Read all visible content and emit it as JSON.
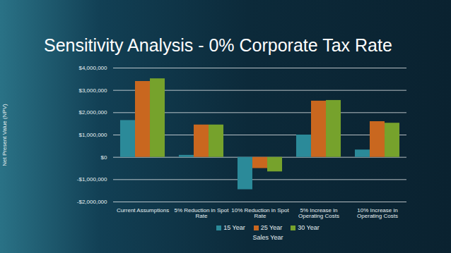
{
  "chart_data": {
    "type": "bar",
    "title": "Sensitivity Analysis - 0% Corporate Tax Rate",
    "x_label": "Sales Year",
    "y_label": "Net Present Value (NPV)",
    "categories": [
      "Current Assumptions",
      "5% Reduction in Spot Rate",
      "10% Reduction in Spot Rate",
      "5% Increase in Operating Costs",
      "10% Increase in Operating Costs"
    ],
    "series": [
      {
        "name": "15 Year",
        "color": "#2b8a99",
        "values": [
          1650000,
          90000,
          -1450000,
          1000000,
          330000
        ]
      },
      {
        "name": "25 Year",
        "color": "#c9671f",
        "values": [
          3400000,
          1450000,
          -500000,
          2520000,
          1600000
        ]
      },
      {
        "name": "30 Year",
        "color": "#76a22c",
        "values": [
          3520000,
          1450000,
          -650000,
          2550000,
          1530000
        ]
      }
    ],
    "ylim": [
      -2000000,
      4000000
    ],
    "yticks": [
      {
        "value": -2000000,
        "label": "-$2,000,000"
      },
      {
        "value": -1000000,
        "label": "-$1,000,000"
      },
      {
        "value": 0,
        "label": "$0"
      },
      {
        "value": 1000000,
        "label": "$1,000,000"
      },
      {
        "value": 2000000,
        "label": "$2,000,000"
      },
      {
        "value": 3000000,
        "label": "$3,000,000"
      },
      {
        "value": 4000000,
        "label": "$4,000,000"
      }
    ],
    "grid": true,
    "legend": "bottom"
  }
}
